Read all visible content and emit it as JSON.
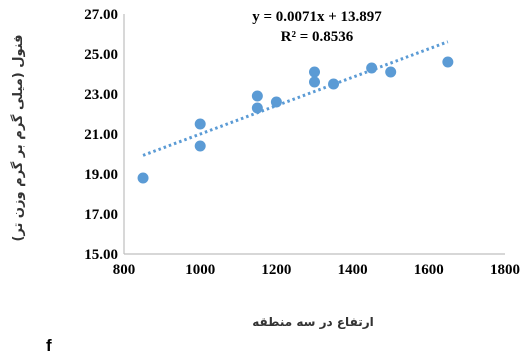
{
  "chart_data": {
    "type": "scatter",
    "title": "",
    "xlabel": "ارتفاع در سه منطقه",
    "ylabel": "فنول (میلی گرم بر گرم وزن تر)",
    "xlim": [
      800,
      1800
    ],
    "ylim": [
      15,
      27
    ],
    "x_ticks": [
      "800",
      "1000",
      "1200",
      "1400",
      "1600",
      "1800"
    ],
    "y_ticks": [
      "15.00",
      "17.00",
      "19.00",
      "21.00",
      "23.00",
      "25.00",
      "27.00"
    ],
    "points": [
      {
        "x": 850,
        "y": 18.8
      },
      {
        "x": 1000,
        "y": 21.5
      },
      {
        "x": 1000,
        "y": 20.4
      },
      {
        "x": 1150,
        "y": 22.9
      },
      {
        "x": 1150,
        "y": 22.3
      },
      {
        "x": 1200,
        "y": 22.6
      },
      {
        "x": 1300,
        "y": 24.1
      },
      {
        "x": 1300,
        "y": 23.6
      },
      {
        "x": 1350,
        "y": 23.5
      },
      {
        "x": 1450,
        "y": 24.3
      },
      {
        "x": 1500,
        "y": 24.1
      },
      {
        "x": 1650,
        "y": 24.6
      }
    ],
    "trendline": {
      "slope": 0.0071,
      "intercept": 13.897,
      "x_start": 850,
      "x_end": 1650
    },
    "equation_text": "y = 0.0071x + 13.897",
    "r2_text": "R² = 0.8536",
    "grid": false,
    "legend": "none",
    "colors": {
      "points": "#5b9bd5",
      "trend": "#5b9bd5",
      "axis": "#bfbfbf"
    }
  },
  "corner_label": "f"
}
